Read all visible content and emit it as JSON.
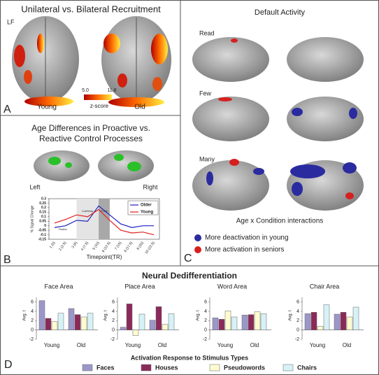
{
  "panel_a": {
    "title": "Unilateral vs. Bilateral Recruitment",
    "orientation": "LF",
    "colorbar_min": "5.0",
    "colorbar_max": "11.8",
    "colorbar_label": "z-score",
    "labels": [
      "Young",
      "Old"
    ],
    "letter": "A"
  },
  "panel_b": {
    "title_lines": [
      "Age Differences in Proactive vs.",
      "Reactive Control Processes"
    ],
    "labels": [
      "Left",
      "Right"
    ],
    "letter": "B"
  },
  "panel_c": {
    "title": "Default Activity",
    "rows": [
      "Read",
      "Few",
      "Many"
    ],
    "caption": "Age x Condition interactions",
    "legend": [
      {
        "label": "More deactivation in young",
        "color": "#2b2ba0"
      },
      {
        "label": "More activation in seniors",
        "color": "#d62020"
      }
    ],
    "letter": "C"
  },
  "panel_d": {
    "letter": "D"
  },
  "chart_data": [
    {
      "type": "line",
      "categories": [
        "1 (0)",
        "2 (2.5)",
        "3 (5)",
        "4 (7.5)",
        "5 (10)",
        "6 (12.5)",
        "7 (15)",
        "8 (17.5)",
        "9 (20)",
        "10 (22.5)"
      ],
      "series": [
        {
          "name": "Older",
          "color": "#2020c0",
          "values": [
            -0.02,
            0.0,
            0.06,
            0.05,
            0.22,
            0.12,
            0.02,
            -0.02,
            0.0,
            0.0
          ]
        },
        {
          "name": "Young",
          "color": "#e02020",
          "values": [
            0.03,
            0.07,
            0.12,
            0.1,
            0.18,
            0.06,
            -0.05,
            -0.08,
            -0.07,
            -0.1
          ]
        }
      ],
      "ylim": [
        -0.15,
        0.3
      ],
      "yticks": [
        0.3,
        0.25,
        0.2,
        0.15,
        0.1,
        0.05,
        0,
        -0.05,
        -0.1,
        -0.15
      ],
      "y_label": "% Signal Change",
      "x_label": "Timepoint(TR)",
      "phase_labels": [
        "Fixation",
        "Cue/Delay",
        "Probe"
      ]
    },
    {
      "type": "grouped-bar",
      "title": "Neural Dedifferentiation",
      "categories": [
        "Young",
        "Old"
      ],
      "series": [
        {
          "name": "Faces",
          "color": "#9b97c9"
        },
        {
          "name": "Houses",
          "color": "#8b2a5a"
        },
        {
          "name": "Pseudowords",
          "color": "#fdfbd0"
        },
        {
          "name": "Chairs",
          "color": "#d6f2f6"
        }
      ],
      "ylim": [
        -2,
        7
      ],
      "yticks": [
        -2,
        0,
        2,
        4,
        6
      ],
      "y_label": "Avg. t",
      "legend_title": "Activation Response to Stimulus Types",
      "panels": [
        {
          "title": "Face Area",
          "values": [
            [
              6.3,
              2.5,
              1.8,
              3.6
            ],
            [
              4.6,
              3.3,
              2.8,
              3.6
            ]
          ]
        },
        {
          "title": "Place Area",
          "values": [
            [
              0.6,
              5.6,
              -1.2,
              3.4
            ],
            [
              2.1,
              5.0,
              1.2,
              3.5
            ]
          ]
        },
        {
          "title": "Word Area",
          "values": [
            [
              2.6,
              2.3,
              4.1,
              2.8
            ],
            [
              3.2,
              3.3,
              3.9,
              3.5
            ]
          ]
        },
        {
          "title": "Chair Area",
          "values": [
            [
              3.5,
              3.8,
              0.8,
              5.4
            ],
            [
              3.4,
              3.8,
              2.8,
              4.9
            ]
          ]
        }
      ]
    }
  ]
}
